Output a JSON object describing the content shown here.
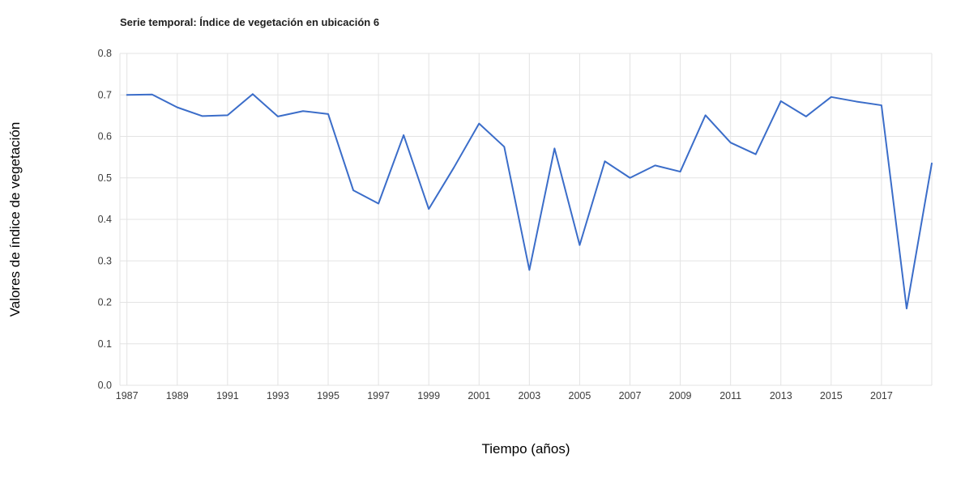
{
  "chart_data": {
    "type": "line",
    "title": "Serie temporal: Índice de vegetación en ubicación 6",
    "xlabel": "Tiempo (años)",
    "ylabel": "Valores de índice de vegetación",
    "x": [
      1987,
      1988,
      1989,
      1990,
      1991,
      1992,
      1993,
      1994,
      1995,
      1996,
      1997,
      1998,
      1999,
      2000,
      2001,
      2002,
      2003,
      2004,
      2005,
      2006,
      2007,
      2008,
      2009,
      2010,
      2011,
      2012,
      2013,
      2014,
      2015,
      2016,
      2017,
      2018,
      2019
    ],
    "values": [
      0.7,
      0.701,
      0.67,
      0.649,
      0.651,
      0.702,
      0.648,
      0.661,
      0.654,
      0.47,
      0.438,
      0.603,
      0.425,
      0.525,
      0.631,
      0.575,
      0.278,
      0.571,
      0.338,
      0.54,
      0.5,
      0.53,
      0.515,
      0.651,
      0.585,
      0.557,
      0.685,
      0.648,
      0.695,
      0.684,
      0.675,
      0.185,
      0.535
    ],
    "xticks": [
      1987,
      1989,
      1991,
      1993,
      1995,
      1997,
      1999,
      2001,
      2003,
      2005,
      2007,
      2009,
      2011,
      2013,
      2015,
      2017
    ],
    "yticks": [
      0,
      0.1,
      0.2,
      0.3,
      0.4,
      0.5,
      0.6,
      0.7,
      0.8
    ],
    "xlim": [
      1986.72,
      2019.0
    ],
    "ylim": [
      0,
      0.8
    ],
    "grid": true,
    "legend": "none",
    "line_color": "#3b6dc9",
    "grid_color": "#e3e3e3",
    "tick_label_color": "#3c3c3c"
  }
}
